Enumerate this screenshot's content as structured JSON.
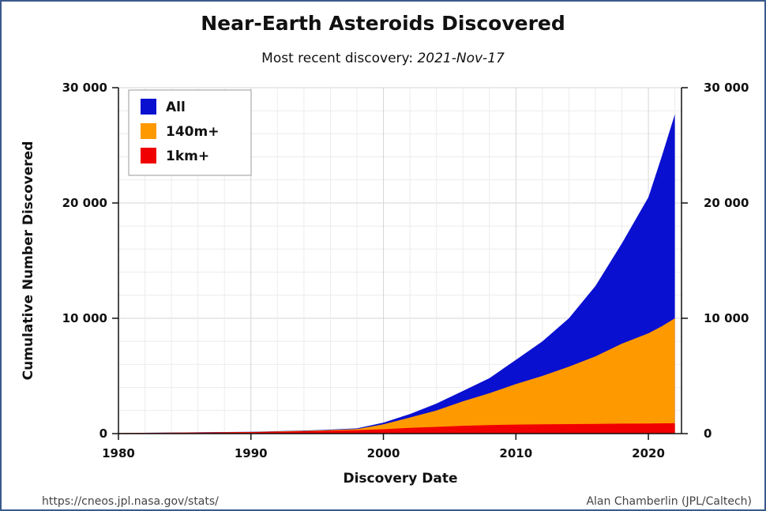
{
  "chart_data": {
    "type": "area",
    "title": "Near-Earth Asteroids Discovered",
    "subtitle_prefix": "Most recent discovery: ",
    "subtitle_date": "2021-Nov-17",
    "xlabel": "Discovery Date",
    "ylabel": "Cumulative Number Discovered",
    "xlim": [
      1980,
      2022
    ],
    "ylim": [
      0,
      30000
    ],
    "x_ticks": [
      "1980",
      "1990",
      "2000",
      "2010",
      "2020"
    ],
    "y_ticks": [
      "0",
      "10 000",
      "20 000",
      "30 000"
    ],
    "grid": true,
    "legend_position": "top-left",
    "x": [
      1980,
      1985,
      1990,
      1995,
      1998,
      2000,
      2002,
      2004,
      2006,
      2008,
      2010,
      2012,
      2014,
      2016,
      2018,
      2020,
      2021,
      2022
    ],
    "series": [
      {
        "name": "All",
        "color": "#0a10d0",
        "values": [
          50,
          100,
          160,
          300,
          450,
          950,
          1700,
          2600,
          3700,
          4800,
          6400,
          8000,
          10000,
          12800,
          16500,
          20500,
          24000,
          27700
        ]
      },
      {
        "name": "140m+",
        "color": "#ff9900",
        "values": [
          45,
          90,
          140,
          270,
          400,
          800,
          1400,
          2000,
          2800,
          3500,
          4300,
          5000,
          5800,
          6700,
          7800,
          8700,
          9300,
          10000
        ]
      },
      {
        "name": "1km+",
        "color": "#f00000",
        "values": [
          40,
          80,
          130,
          220,
          300,
          380,
          500,
          580,
          680,
          740,
          780,
          800,
          820,
          840,
          860,
          880,
          890,
          900
        ]
      }
    ]
  },
  "footer": {
    "left": "https://cneos.jpl.nasa.gov/stats/",
    "right": "Alan Chamberlin (JPL/Caltech)"
  }
}
